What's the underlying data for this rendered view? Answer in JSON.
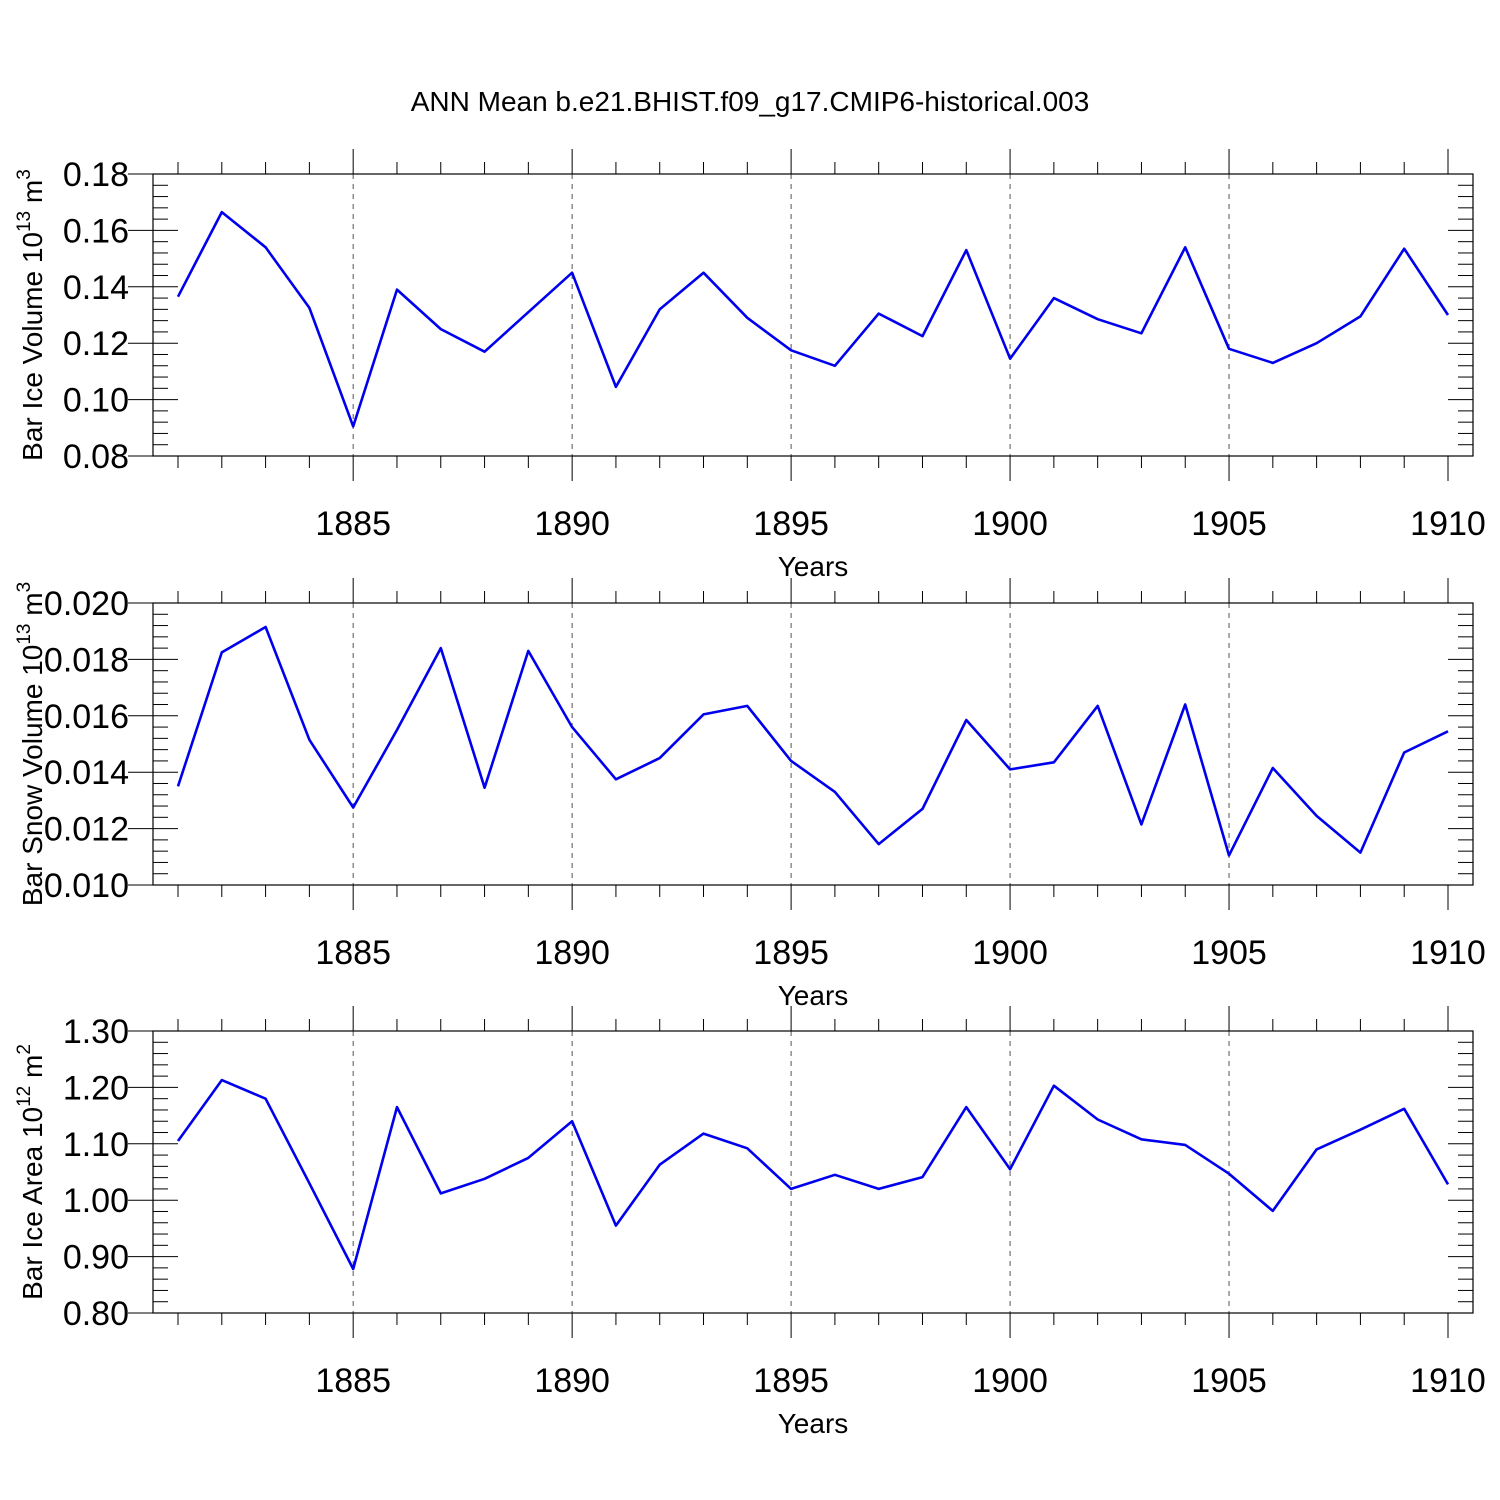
{
  "title": "ANN Mean b.e21.BHIST.f09_g17.CMIP6-historical.003",
  "colors": {
    "line": "#0000ee",
    "axis": "#000000",
    "grid": "#555555"
  },
  "chart_data": [
    {
      "type": "line",
      "xlabel": "Years",
      "ylabel": "Bar Ice Volume 10",
      "ylabel_exp": "13",
      "ylabel_unit": " m",
      "ylabel_unit_exp": "3",
      "xlim": [
        1881,
        1910
      ],
      "ylim": [
        0.08,
        0.18
      ],
      "yticks": [
        0.08,
        0.1,
        0.12,
        0.14,
        0.16,
        0.18
      ],
      "ytick_labels": [
        "0.08",
        "0.10",
        "0.12",
        "0.14",
        "0.16",
        "0.18"
      ],
      "xticks": [
        1885,
        1890,
        1895,
        1900,
        1905,
        1910
      ],
      "xtick_labels": [
        "1885",
        "1890",
        "1895",
        "1900",
        "1905",
        "1910"
      ],
      "x": [
        1881,
        1882,
        1883,
        1884,
        1885,
        1886,
        1887,
        1888,
        1889,
        1890,
        1891,
        1892,
        1893,
        1894,
        1895,
        1896,
        1897,
        1898,
        1899,
        1900,
        1901,
        1902,
        1903,
        1904,
        1905,
        1906,
        1907,
        1908,
        1909,
        1910
      ],
      "series": [
        {
          "name": "Bar Ice Volume",
          "values": [
            0.1365,
            0.1665,
            0.154,
            0.1325,
            0.0905,
            0.139,
            0.125,
            0.117,
            0.131,
            0.145,
            0.1045,
            0.132,
            0.145,
            0.129,
            0.1175,
            0.112,
            0.1305,
            0.1225,
            0.153,
            0.1145,
            0.136,
            0.1285,
            0.1235,
            0.154,
            0.118,
            0.113,
            0.12,
            0.1295,
            0.1535,
            0.13
          ]
        }
      ]
    },
    {
      "type": "line",
      "xlabel": "Years",
      "ylabel": "Bar Snow Volume 10",
      "ylabel_exp": "13",
      "ylabel_unit": " m",
      "ylabel_unit_exp": "3",
      "xlim": [
        1881,
        1910
      ],
      "ylim": [
        0.01,
        0.02
      ],
      "yticks": [
        0.01,
        0.012,
        0.014,
        0.016,
        0.018,
        0.02
      ],
      "ytick_labels": [
        "0.010",
        "0.012",
        "0.014",
        "0.016",
        "0.018",
        "0.020"
      ],
      "xticks": [
        1885,
        1890,
        1895,
        1900,
        1905,
        1910
      ],
      "xtick_labels": [
        "1885",
        "1890",
        "1895",
        "1900",
        "1905",
        "1910"
      ],
      "x": [
        1881,
        1882,
        1883,
        1884,
        1885,
        1886,
        1887,
        1888,
        1889,
        1890,
        1891,
        1892,
        1893,
        1894,
        1895,
        1896,
        1897,
        1898,
        1899,
        1900,
        1901,
        1902,
        1903,
        1904,
        1905,
        1906,
        1907,
        1908,
        1909,
        1910
      ],
      "series": [
        {
          "name": "Bar Snow Volume",
          "values": [
            0.0135,
            0.01825,
            0.01915,
            0.01515,
            0.01275,
            0.0155,
            0.0184,
            0.01345,
            0.0183,
            0.0156,
            0.01375,
            0.0145,
            0.01605,
            0.01635,
            0.0144,
            0.0133,
            0.01145,
            0.0127,
            0.01585,
            0.0141,
            0.01435,
            0.01635,
            0.01215,
            0.0164,
            0.01105,
            0.01415,
            0.01245,
            0.01115,
            0.0147,
            0.01545
          ]
        }
      ]
    },
    {
      "type": "line",
      "xlabel": "Years",
      "ylabel": "Bar Ice Area 10",
      "ylabel_exp": "12",
      "ylabel_unit": " m",
      "ylabel_unit_exp": "2",
      "xlim": [
        1881,
        1910
      ],
      "ylim": [
        0.8,
        1.3
      ],
      "yticks": [
        0.8,
        0.9,
        1.0,
        1.1,
        1.2,
        1.3
      ],
      "ytick_labels": [
        "0.80",
        "0.90",
        "1.00",
        "1.10",
        "1.20",
        "1.30"
      ],
      "xticks": [
        1885,
        1890,
        1895,
        1900,
        1905,
        1910
      ],
      "xtick_labels": [
        "1885",
        "1890",
        "1895",
        "1900",
        "1905",
        "1910"
      ],
      "x": [
        1881,
        1882,
        1883,
        1884,
        1885,
        1886,
        1887,
        1888,
        1889,
        1890,
        1891,
        1892,
        1893,
        1894,
        1895,
        1896,
        1897,
        1898,
        1899,
        1900,
        1901,
        1902,
        1903,
        1904,
        1905,
        1906,
        1907,
        1908,
        1909,
        1910
      ],
      "series": [
        {
          "name": "Bar Ice Area",
          "values": [
            1.105,
            1.213,
            1.18,
            1.03,
            0.878,
            1.165,
            1.012,
            1.038,
            1.075,
            1.14,
            0.955,
            1.063,
            1.118,
            1.092,
            1.02,
            1.045,
            1.02,
            1.041,
            1.165,
            1.055,
            1.203,
            1.143,
            1.108,
            1.098,
            1.047,
            0.981,
            1.09,
            1.125,
            1.162,
            1.028
          ]
        }
      ]
    }
  ]
}
